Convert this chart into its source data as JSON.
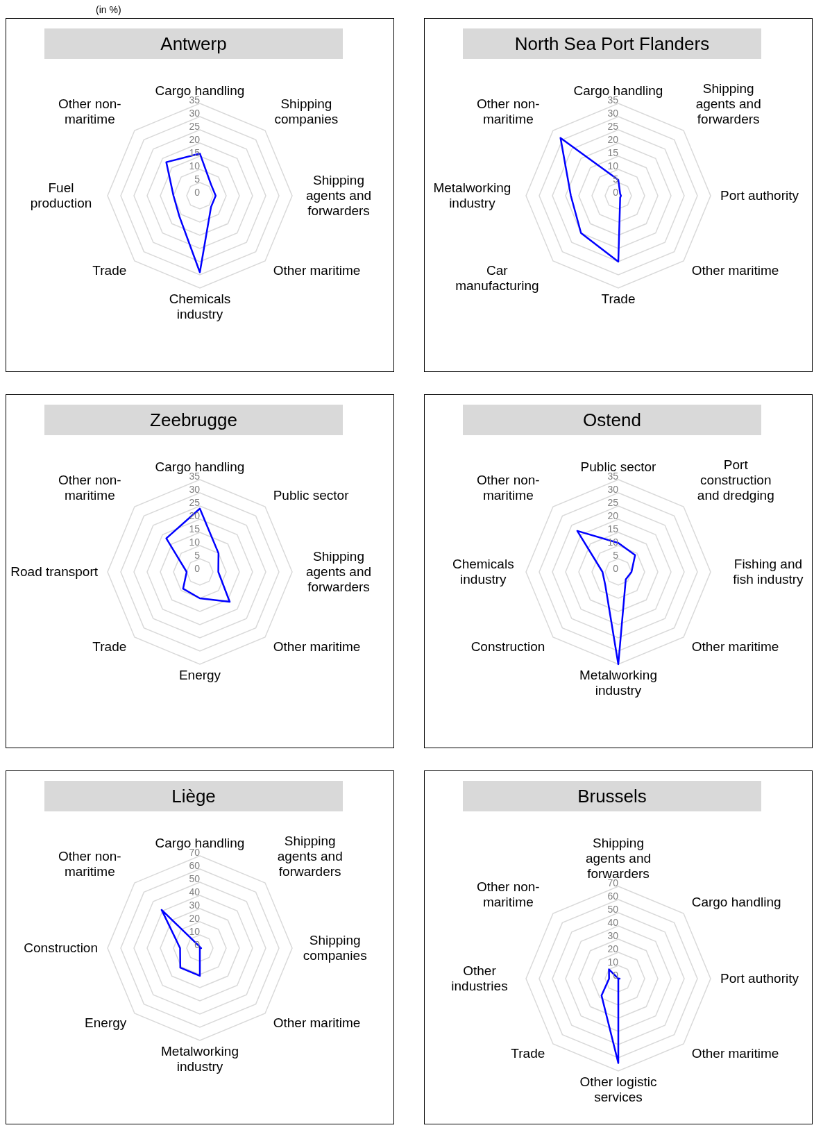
{
  "chart_data": [
    {
      "type": "radar",
      "title": "Antwerp",
      "annotations": [
        "(in %)"
      ],
      "categories": [
        "Cargo handling",
        "Shipping companies",
        "Shipping agents and forwarders",
        "Other maritime",
        "Chemicals industry",
        "Trade",
        "Fuel production",
        "Other non-maritime"
      ],
      "series": [
        {
          "color": "#0000ff",
          "values": [
            16,
            6,
            6,
            6,
            29,
            11,
            10,
            18
          ]
        }
      ],
      "ylim": [
        0,
        35
      ],
      "yticks": [
        0,
        5,
        10,
        15,
        20,
        25,
        30,
        35
      ],
      "grid": true
    },
    {
      "type": "radar",
      "title": "North Sea Port Flanders",
      "categories": [
        "Cargo handling",
        "Shipping agents and forwarders",
        "Port authority",
        "Other maritime",
        "Trade",
        "Car manufacturing",
        "Metalworking industry",
        "Other non-maritime"
      ],
      "series": [
        {
          "color": "#0000ff",
          "values": [
            6,
            1,
            1,
            1,
            25,
            20,
            18,
            31
          ]
        }
      ],
      "ylim": [
        0,
        35
      ],
      "yticks": [
        0,
        5,
        10,
        15,
        20,
        25,
        30,
        35
      ],
      "grid": true
    },
    {
      "type": "radar",
      "title": "Zeebrugge",
      "categories": [
        "Cargo handling",
        "Public sector",
        "Shipping agents and forwarders",
        "Other maritime",
        "Energy",
        "Trade",
        "Road transport",
        "Other non-maritime"
      ],
      "series": [
        {
          "color": "#0000ff",
          "values": [
            24,
            10,
            7,
            16,
            10,
            9,
            5,
            18
          ]
        }
      ],
      "ylim": [
        0,
        35
      ],
      "yticks": [
        0,
        5,
        10,
        15,
        20,
        25,
        30,
        35
      ],
      "grid": true
    },
    {
      "type": "radar",
      "title": "Ostend",
      "categories": [
        "Public sector",
        "Port construction and dredging",
        "Fishing and fish industry",
        "Other maritime",
        "Metalworking industry",
        "Construction",
        "Chemicals industry",
        "Other non-maritime"
      ],
      "series": [
        {
          "color": "#0000ff",
          "values": [
            11,
            9,
            5,
            4,
            35,
            7,
            6,
            22
          ]
        }
      ],
      "ylim": [
        0,
        35
      ],
      "yticks": [
        0,
        5,
        10,
        15,
        20,
        25,
        30,
        35
      ],
      "grid": true
    },
    {
      "type": "radar",
      "title": "Liège",
      "categories": [
        "Cargo handling",
        "Shipping agents and forwarders",
        "Shipping companies",
        "Other maritime",
        "Metalworking industry",
        "Energy",
        "Construction",
        "Other non-maritime"
      ],
      "series": [
        {
          "color": "#0000ff",
          "values": [
            1,
            0,
            1,
            0,
            21,
            21,
            15,
            41
          ]
        }
      ],
      "ylim": [
        0,
        70
      ],
      "yticks": [
        0,
        10,
        20,
        30,
        40,
        50,
        60,
        70
      ],
      "grid": true
    },
    {
      "type": "radar",
      "title": "Brussels",
      "categories": [
        "Shipping agents and forwarders",
        "Cargo handling",
        "Port authority",
        "Other maritime",
        "Other logistic services",
        "Trade",
        "Other industries",
        "Other non-maritime"
      ],
      "series": [
        {
          "color": "#0000ff",
          "values": [
            0,
            0,
            1,
            0,
            64,
            18,
            7,
            10
          ]
        }
      ],
      "ylim": [
        0,
        70
      ],
      "yticks": [
        0,
        10,
        20,
        30,
        40,
        50,
        60,
        70
      ],
      "grid": true
    }
  ]
}
